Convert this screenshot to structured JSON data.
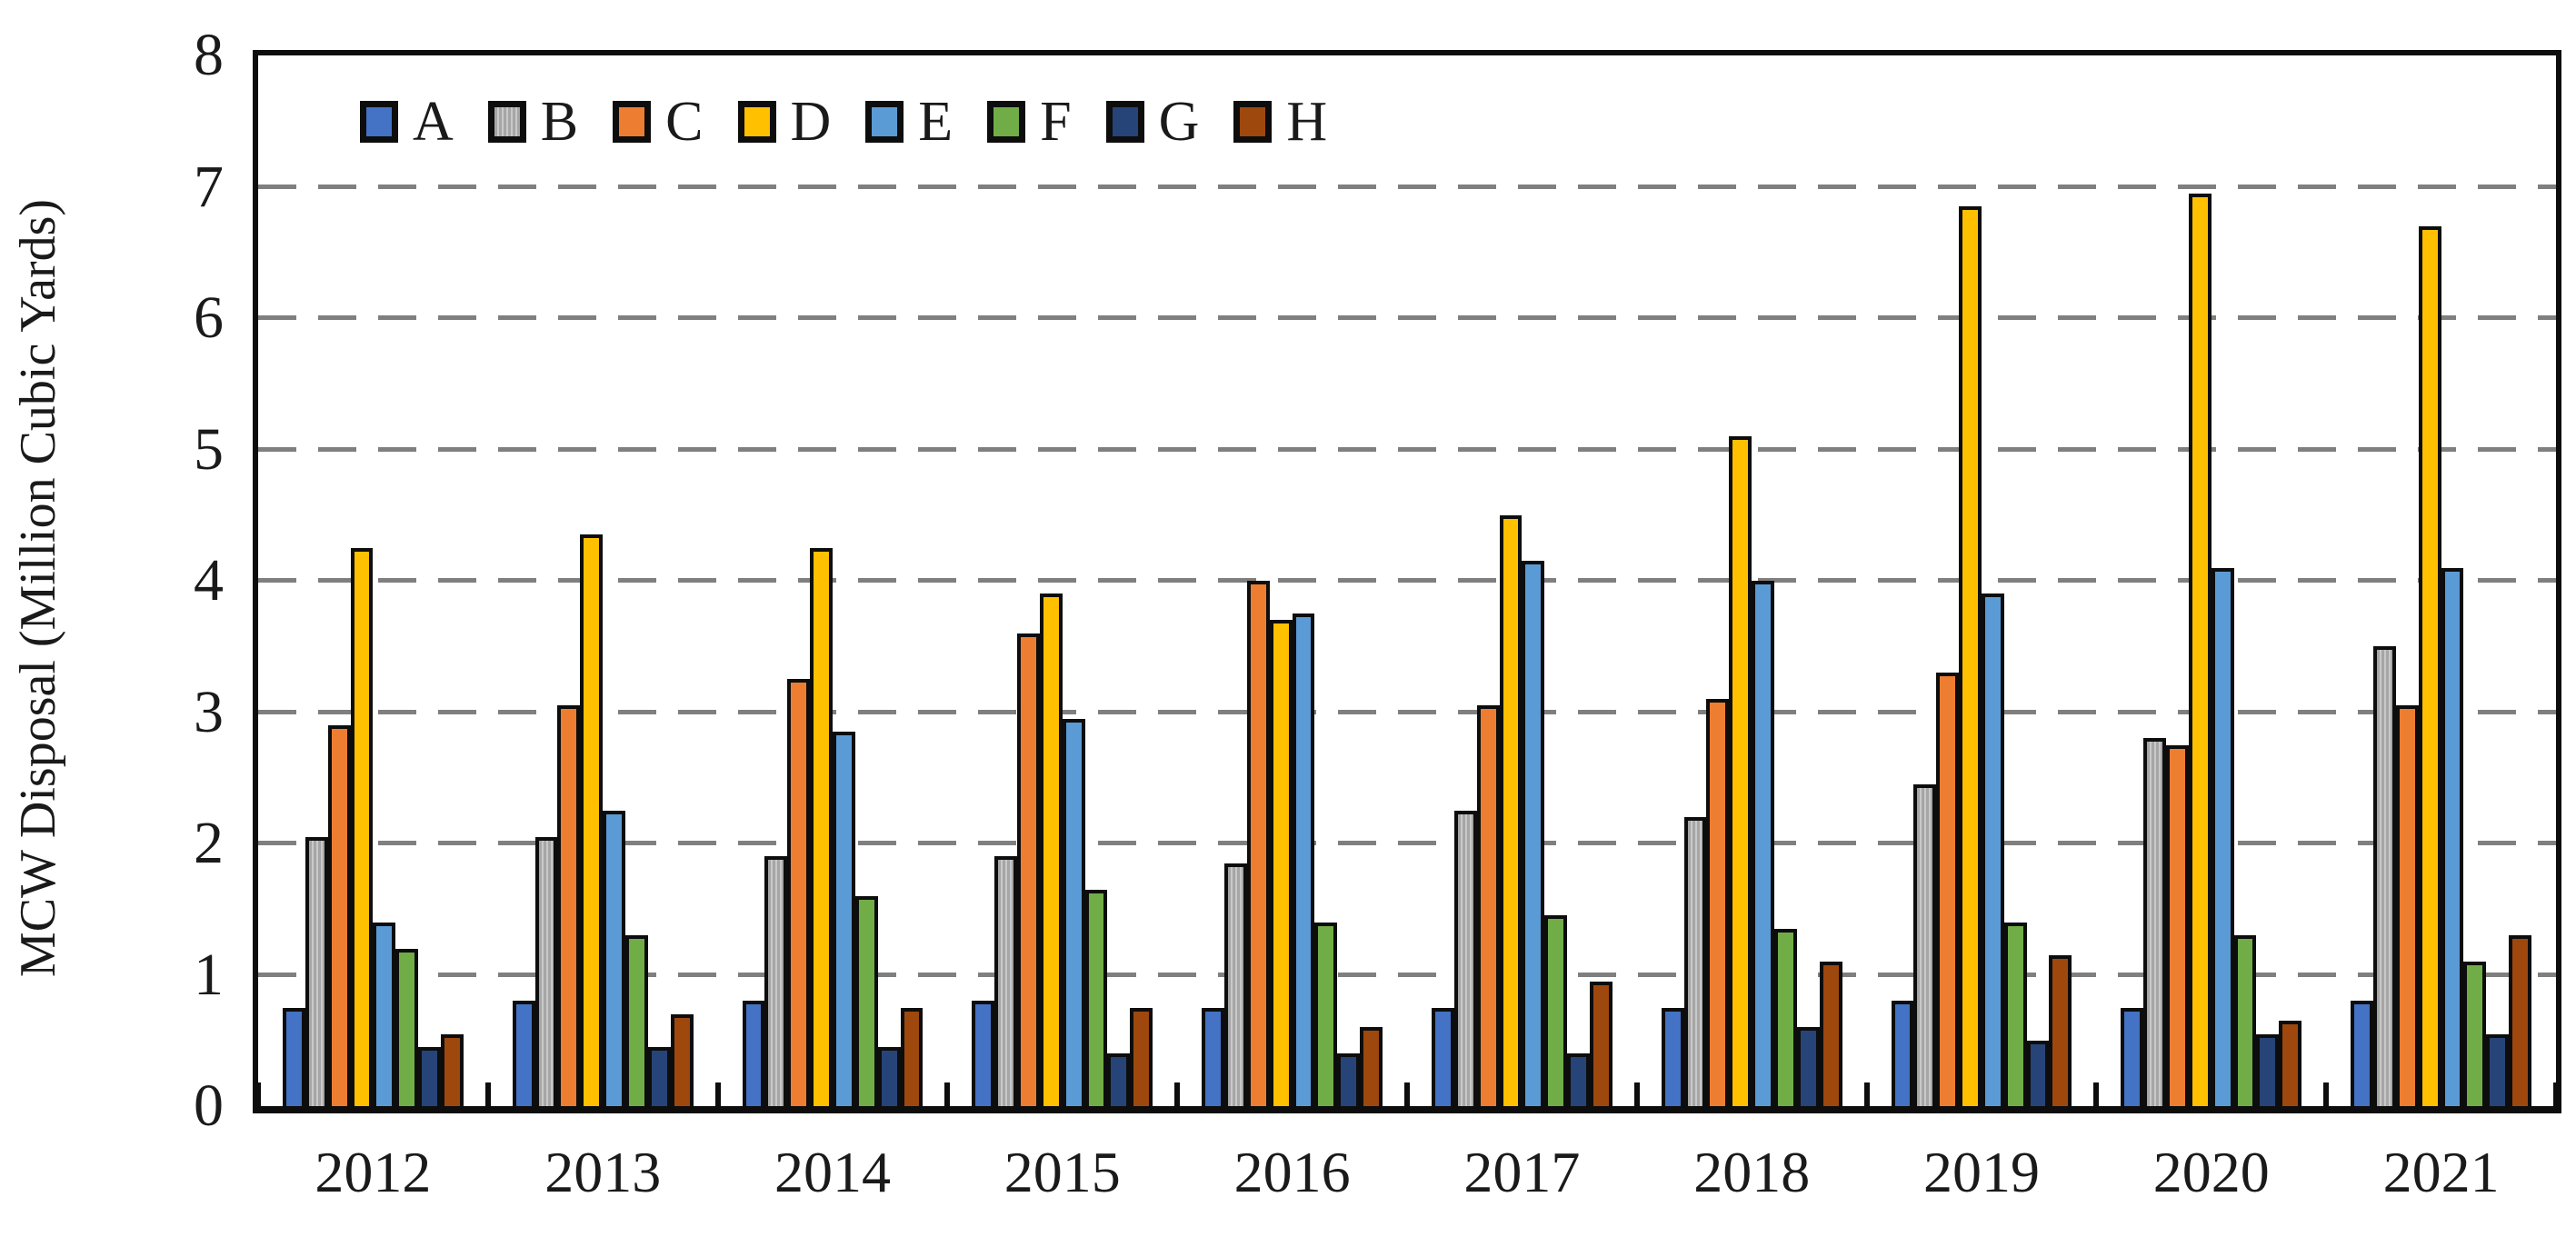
{
  "chart_data": {
    "type": "bar",
    "title": "",
    "xlabel": "",
    "ylabel": "MCW Disposal (Million Cubic Yards)",
    "ylim": [
      0,
      8
    ],
    "yticks": [
      0,
      1,
      2,
      3,
      4,
      5,
      6,
      7,
      8
    ],
    "grid": "horizontal-dashed",
    "legend_position": "top-left-inside",
    "categories": [
      "2012",
      "2013",
      "2014",
      "2015",
      "2016",
      "2017",
      "2018",
      "2019",
      "2020",
      "2021"
    ],
    "series": [
      {
        "name": "A",
        "color": "#4472C4",
        "striped": false,
        "values": [
          0.75,
          0.8,
          0.8,
          0.8,
          0.75,
          0.75,
          0.75,
          0.8,
          0.75,
          0.8
        ]
      },
      {
        "name": "B",
        "color": "#A6A6A6",
        "striped": true,
        "values": [
          2.05,
          2.05,
          1.9,
          1.9,
          1.85,
          2.25,
          2.2,
          2.45,
          2.8,
          3.5
        ]
      },
      {
        "name": "C",
        "color": "#ED7D31",
        "striped": false,
        "values": [
          2.9,
          3.05,
          3.25,
          3.6,
          4.0,
          3.05,
          3.1,
          3.3,
          2.75,
          3.05
        ]
      },
      {
        "name": "D",
        "color": "#FFC000",
        "striped": false,
        "values": [
          4.25,
          4.35,
          4.25,
          3.9,
          3.7,
          4.5,
          5.1,
          6.85,
          6.95,
          6.7
        ]
      },
      {
        "name": "E",
        "color": "#5B9BD5",
        "striped": false,
        "values": [
          1.4,
          2.25,
          2.85,
          2.95,
          3.75,
          4.15,
          4.0,
          3.9,
          4.1,
          4.1
        ]
      },
      {
        "name": "F",
        "color": "#70AD47",
        "striped": false,
        "values": [
          1.2,
          1.3,
          1.6,
          1.65,
          1.4,
          1.45,
          1.35,
          1.4,
          1.3,
          1.1
        ]
      },
      {
        "name": "G",
        "color": "#264478",
        "striped": false,
        "values": [
          0.45,
          0.45,
          0.45,
          0.4,
          0.4,
          0.4,
          0.6,
          0.5,
          0.55,
          0.55
        ]
      },
      {
        "name": "H",
        "color": "#9E480E",
        "striped": false,
        "values": [
          0.55,
          0.7,
          0.75,
          0.75,
          0.6,
          0.95,
          1.1,
          1.15,
          0.65,
          1.3
        ]
      }
    ],
    "axis_color": "#0d0d0d",
    "gridline_color": "#7f7f7f"
  }
}
